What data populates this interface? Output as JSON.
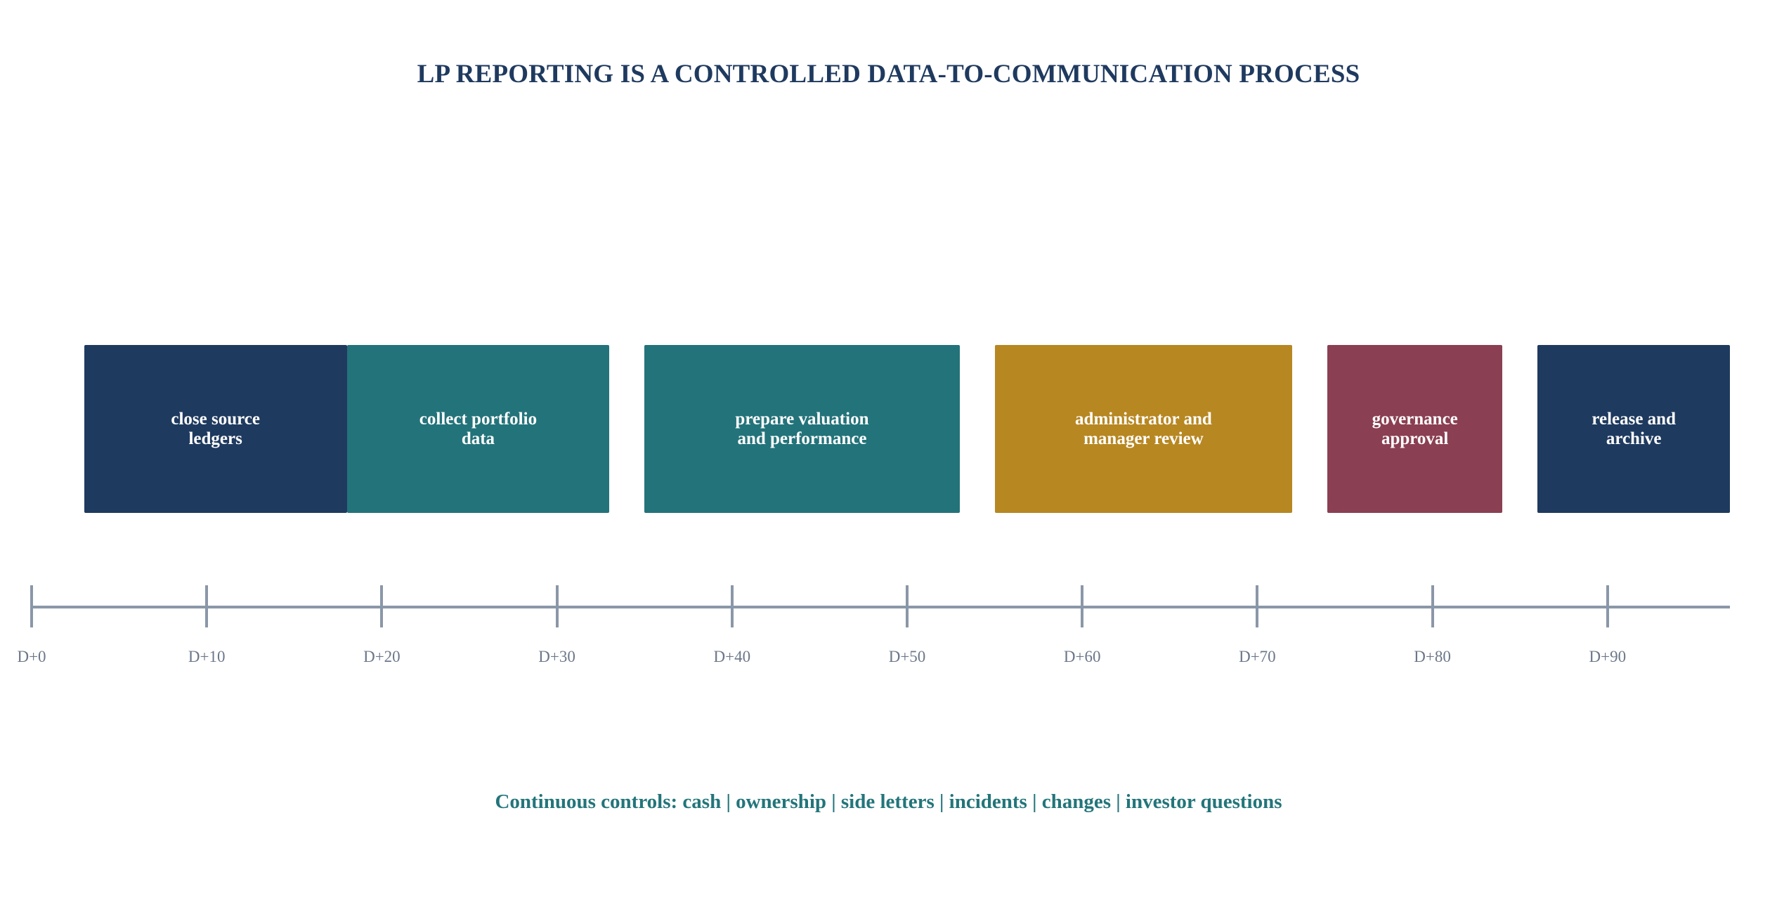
{
  "title": "LP REPORTING IS A CONTROLLED DATA-TO-COMMUNICATION PROCESS",
  "phases": [
    {
      "lines": [
        "close source",
        "ledgers"
      ],
      "start": 3,
      "end": 18,
      "color": "#1f3a5f"
    },
    {
      "lines": [
        "collect portfolio",
        "data"
      ],
      "start": 18,
      "end": 33,
      "color": "#23737a"
    },
    {
      "lines": [
        "prepare valuation",
        "and performance"
      ],
      "start": 35,
      "end": 53,
      "color": "#23737a"
    },
    {
      "lines": [
        "administrator and",
        "manager review"
      ],
      "start": 55,
      "end": 72,
      "color": "#b78722"
    },
    {
      "lines": [
        "governance",
        "approval"
      ],
      "start": 74,
      "end": 84,
      "color": "#8b3f52"
    },
    {
      "lines": [
        "release and",
        "archive"
      ],
      "start": 86,
      "end": 97,
      "color": "#1f3a5f"
    }
  ],
  "axis": {
    "ticks": [
      "D+0",
      "D+10",
      "D+20",
      "D+30",
      "D+40",
      "D+50",
      "D+60",
      "D+70",
      "D+80",
      "D+90"
    ],
    "tick_values": [
      0,
      10,
      20,
      30,
      40,
      50,
      60,
      70,
      80,
      90
    ],
    "range": [
      0,
      97
    ]
  },
  "footer": "Continuous controls: cash | ownership | side letters | incidents | changes | investor questions"
}
